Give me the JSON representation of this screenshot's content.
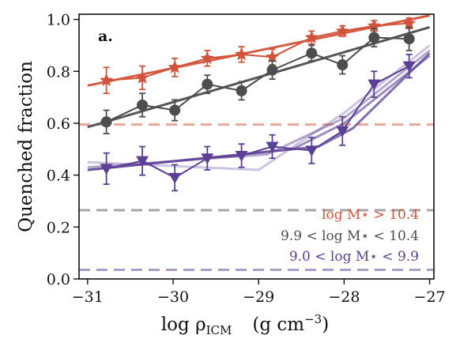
{
  "chart_data": {
    "type": "line",
    "panel_label": "a.",
    "xlabel": "log ρ",
    "xlabel_subscript": "ICM",
    "xlabel_units": "(g cm",
    "xlabel_units_exp": "−3",
    "xlabel_units_close": ")",
    "ylabel": "Quenched fraction",
    "xlim": [
      -31.1,
      -26.95
    ],
    "ylim": [
      0.0,
      1.02
    ],
    "xticks": [
      -31,
      -30,
      -29,
      -28,
      -27
    ],
    "xtick_labels": [
      "−31",
      "−30",
      "−29",
      "−28",
      "−27"
    ],
    "yticks": [
      0.0,
      0.2,
      0.4,
      0.6,
      0.8,
      1.0
    ],
    "ytick_labels": [
      "0.0",
      "0.2",
      "0.4",
      "0.6",
      "0.8",
      "1.0"
    ],
    "legend_position": "bottom-right",
    "legend": [
      {
        "text": "log M⋆ > 10.4",
        "color": "#d1533b"
      },
      {
        "text": "9.9 < log M⋆ < 10.4",
        "color": "#4d4d4d"
      },
      {
        "text": "9.0 < log M⋆ < 9.9",
        "color": "#5b3f94"
      }
    ],
    "series": [
      {
        "color": "#d1533b",
        "marker": "star",
        "x": [
          -30.78,
          -30.36,
          -29.98,
          -29.6,
          -29.2,
          -28.84,
          -28.38,
          -28.02,
          -27.65,
          -27.24
        ],
        "y": [
          0.765,
          0.775,
          0.815,
          0.85,
          0.865,
          0.855,
          0.93,
          0.955,
          0.975,
          0.985
        ],
        "err": [
          0.05,
          0.045,
          0.035,
          0.03,
          0.03,
          0.03,
          0.025,
          0.02,
          0.02,
          0.02
        ],
        "baseline": 0.595,
        "fit_x": [
          -31.0,
          -27.0
        ],
        "fit_y": [
          0.745,
          1.015
        ]
      },
      {
        "color": "#4d4d4d",
        "marker": "circle",
        "x": [
          -30.78,
          -30.36,
          -29.98,
          -29.6,
          -29.2,
          -28.84,
          -28.38,
          -28.02,
          -27.65,
          -27.24
        ],
        "y": [
          0.605,
          0.67,
          0.65,
          0.75,
          0.725,
          0.805,
          0.87,
          0.825,
          0.93,
          0.925
        ],
        "err": [
          0.045,
          0.045,
          0.04,
          0.035,
          0.035,
          0.035,
          0.03,
          0.035,
          0.035,
          0.045
        ],
        "baseline": 0.265,
        "fit_x": [
          -31.0,
          -27.0
        ],
        "fit_y": [
          0.585,
          0.97
        ]
      },
      {
        "color": "#5b3f94",
        "marker": "triangle",
        "x": [
          -30.78,
          -30.36,
          -29.98,
          -29.6,
          -29.2,
          -28.84,
          -28.38,
          -28.02,
          -27.65,
          -27.24
        ],
        "y": [
          0.425,
          0.455,
          0.39,
          0.465,
          0.475,
          0.51,
          0.495,
          0.57,
          0.75,
          0.82
        ],
        "err": [
          0.06,
          0.055,
          0.05,
          0.045,
          0.045,
          0.045,
          0.05,
          0.055,
          0.05,
          0.045
        ],
        "baseline": 0.035,
        "fits": [
          {
            "x": [
              -31.0,
              -29.0,
              -28.0,
              -27.0
            ],
            "y": [
              0.45,
              0.42,
              0.64,
              0.9
            ],
            "opacity": 0.3
          },
          {
            "x": [
              -31.0,
              -28.9,
              -28.0,
              -27.0
            ],
            "y": [
              0.43,
              0.48,
              0.62,
              0.88
            ],
            "opacity": 0.45
          },
          {
            "x": [
              -31.0,
              -28.6,
              -28.0,
              -27.0
            ],
            "y": [
              0.42,
              0.5,
              0.6,
              0.86
            ],
            "opacity": 0.6
          },
          {
            "x": [
              -31.0,
              -28.3,
              -27.9,
              -27.0
            ],
            "y": [
              0.42,
              0.51,
              0.58,
              0.87
            ],
            "opacity": 0.75
          }
        ]
      }
    ]
  }
}
